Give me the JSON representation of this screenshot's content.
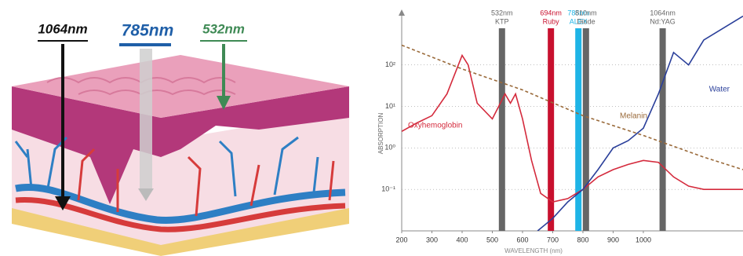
{
  "illustration": {
    "labels": [
      {
        "text": "1064nm",
        "color": "#111111"
      },
      {
        "text": "785nm",
        "color": "#1f5fa8"
      },
      {
        "text": "532nm",
        "color": "#3f8a55"
      }
    ]
  },
  "chart_data": {
    "type": "line",
    "xlabel": "WAVELENGTH (nm)",
    "ylabel": "ABSORPTION",
    "log_y": true,
    "xlim": [
      200,
      1330
    ],
    "xticks": [
      200,
      300,
      400,
      500,
      600,
      700,
      800,
      900,
      1000
    ],
    "ylim": [
      0.01,
      2000
    ],
    "yticks": [
      {
        "value": 0.1,
        "label": "10⁻¹"
      },
      {
        "value": 1,
        "label": "10⁰"
      },
      {
        "value": 10,
        "label": "10¹"
      },
      {
        "value": 100,
        "label": "10²"
      }
    ],
    "series": [
      {
        "name": "Oxyhemoglobin",
        "color": "#d42a3c",
        "style": "solid",
        "x": [
          200,
          250,
          300,
          350,
          400,
          420,
          450,
          500,
          542,
          560,
          577,
          600,
          630,
          660,
          700,
          750,
          800,
          850,
          900,
          950,
          1000,
          1050,
          1100,
          1150,
          1200,
          1330
        ],
        "values": [
          2.5,
          4,
          6,
          20,
          170,
          100,
          12,
          5,
          20,
          12,
          20,
          5,
          0.5,
          0.08,
          0.05,
          0.06,
          0.1,
          0.2,
          0.3,
          0.4,
          0.5,
          0.45,
          0.2,
          0.12,
          0.1,
          0.1
        ]
      },
      {
        "name": "Melanin",
        "color": "#9a6a3a",
        "style": "dashed",
        "x": [
          200,
          400,
          600,
          800,
          1000,
          1200,
          1330
        ],
        "values": [
          300,
          80,
          25,
          6,
          2,
          0.6,
          0.3
        ]
      },
      {
        "name": "Water",
        "color": "#2a3f9a",
        "style": "solid",
        "x": [
          650,
          700,
          750,
          800,
          850,
          900,
          950,
          1000,
          1050,
          1100,
          1150,
          1200,
          1330
        ],
        "values": [
          0.01,
          0.02,
          0.05,
          0.1,
          0.3,
          1,
          1.5,
          3,
          20,
          200,
          100,
          400,
          1500
        ]
      }
    ],
    "lasers": [
      {
        "wavelength": 532,
        "label": "532nm",
        "sublabel": "KTP",
        "color": "#666666"
      },
      {
        "wavelength": 694,
        "label": "694nm",
        "sublabel": "Ruby",
        "color": "#c8102e"
      },
      {
        "wavelength": 785,
        "label": "785nm",
        "sublabel": "ALEX",
        "color": "#1eb4e6"
      },
      {
        "wavelength": 810,
        "label": "810nm",
        "sublabel": "Diode",
        "color": "#666666"
      },
      {
        "wavelength": 1064,
        "label": "1064nm",
        "sublabel": "Nd:YAG",
        "color": "#666666"
      }
    ]
  }
}
